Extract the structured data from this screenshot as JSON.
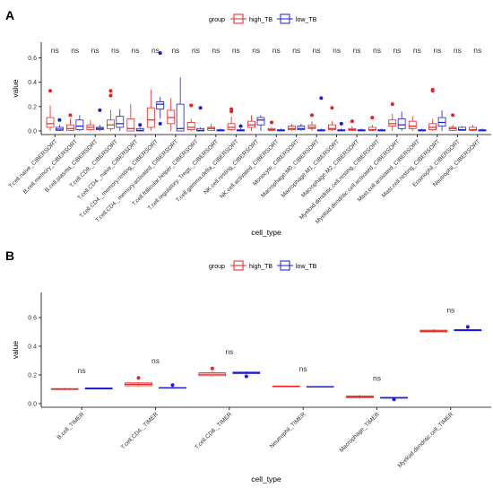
{
  "colors": {
    "high_TB": "#e8201e",
    "low_TB": "#1b1bd8",
    "axis": "#000000",
    "sig": "#333333"
  },
  "chart_data": [
    {
      "panel_label": "A",
      "type": "boxplot",
      "legend": {
        "title": "group",
        "position": "top",
        "entries": [
          "high_TB",
          "low_TB"
        ]
      },
      "xlabel": "cell_type",
      "ylabel": "value",
      "ylim": [
        0,
        0.7
      ],
      "yticks": [
        "0.0",
        "0.2",
        "0.4",
        "0.6"
      ],
      "categories": [
        "T.cell.naive_CIBERSORT",
        "B.cell.memory_CIBERSORT",
        "B.cell.plasma_CIBERSORT",
        "T.cell.CD8._CIBERSORT",
        "T.cell.CD4._naive_CIBERSORT",
        "T.cell.CD4._memory.resting_CIBERSORT",
        "T.cell.CD4._memory.activated_CIBERSORT",
        "T.cell.follicular.helper_CIBERSORT",
        "T.cell.regulatory..Tregs._CIBERSORT",
        "T.cell.gamma.delta_CIBERSORT",
        "NK.cell.resting_CIBERSORT",
        "NK.cell.activated_CIBERSORT",
        "Monocyte_CIBERSORT",
        "Macrophage.M0_CIBERSORT",
        "Macrophage.M1_CIBERSORT",
        "Macrophage.M2_CIBERSORT",
        "Myeloid.dendritic.cell.resting_CIBERSORT",
        "Myeloid.dendritic.cell.activated_CIBERSORT",
        "Mast.cell.activated_CIBERSORT",
        "Mast.cell.resting_CIBERSORT",
        "Eosinophil_CIBERSORT",
        "Neutrophil_CIBERSORT"
      ],
      "significance": [
        "ns",
        "ns",
        "ns",
        "ns",
        "ns",
        "ns",
        "ns",
        "ns",
        "ns",
        "ns",
        "ns",
        "ns",
        "ns",
        "ns",
        "ns",
        "ns",
        "ns",
        "ns",
        "ns",
        "ns",
        "ns",
        "ns"
      ],
      "series": [
        {
          "name": "high_TB",
          "boxes": [
            {
              "min": 0,
              "q1": 0.03,
              "median": 0.06,
              "q3": 0.11,
              "max": 0.21,
              "outliers": [
                0.33
              ]
            },
            {
              "min": 0,
              "q1": 0.005,
              "median": 0.02,
              "q3": 0.05,
              "max": 0.1,
              "outliers": [
                0.13
              ]
            },
            {
              "min": 0,
              "q1": 0.01,
              "median": 0.03,
              "q3": 0.05,
              "max": 0.09,
              "outliers": []
            },
            {
              "min": 0,
              "q1": 0.02,
              "median": 0.05,
              "q3": 0.09,
              "max": 0.17,
              "outliers": [
                0.29,
                0.33
              ]
            },
            {
              "min": 0,
              "q1": 0,
              "median": 0.02,
              "q3": 0.1,
              "max": 0.22,
              "outliers": []
            },
            {
              "min": 0,
              "q1": 0.03,
              "median": 0.09,
              "q3": 0.19,
              "max": 0.34,
              "outliers": []
            },
            {
              "min": 0,
              "q1": 0.06,
              "median": 0.11,
              "q3": 0.17,
              "max": 0.27,
              "outliers": []
            },
            {
              "min": 0,
              "q1": 0.01,
              "median": 0.03,
              "q3": 0.07,
              "max": 0.1,
              "outliers": [
                0.21
              ]
            },
            {
              "min": 0,
              "q1": 0.005,
              "median": 0.02,
              "q3": 0.03,
              "max": 0.06,
              "outliers": []
            },
            {
              "min": 0,
              "q1": 0.01,
              "median": 0.03,
              "q3": 0.06,
              "max": 0.12,
              "outliers": [
                0.16,
                0.18
              ]
            },
            {
              "min": 0,
              "q1": 0.03,
              "median": 0.05,
              "q3": 0.08,
              "max": 0.13,
              "outliers": []
            },
            {
              "min": 0,
              "q1": 0.005,
              "median": 0.01,
              "q3": 0.02,
              "max": 0.03,
              "outliers": [
                0.07
              ]
            },
            {
              "min": 0,
              "q1": 0.01,
              "median": 0.02,
              "q3": 0.04,
              "max": 0.06,
              "outliers": []
            },
            {
              "min": 0,
              "q1": 0.02,
              "median": 0.03,
              "q3": 0.05,
              "max": 0.08,
              "outliers": [
                0.13
              ]
            },
            {
              "min": 0,
              "q1": 0.01,
              "median": 0.02,
              "q3": 0.05,
              "max": 0.08,
              "outliers": [
                0.19
              ]
            },
            {
              "min": 0,
              "q1": 0.005,
              "median": 0.01,
              "q3": 0.02,
              "max": 0.04,
              "outliers": [
                0.08
              ]
            },
            {
              "min": 0,
              "q1": 0.005,
              "median": 0.01,
              "q3": 0.03,
              "max": 0.05,
              "outliers": [
                0.11
              ]
            },
            {
              "min": 0,
              "q1": 0.04,
              "median": 0.06,
              "q3": 0.09,
              "max": 0.14,
              "outliers": [
                0.22
              ]
            },
            {
              "min": 0,
              "q1": 0.02,
              "median": 0.04,
              "q3": 0.08,
              "max": 0.12,
              "outliers": []
            },
            {
              "min": 0,
              "q1": 0.01,
              "median": 0.03,
              "q3": 0.06,
              "max": 0.1,
              "outliers": [
                0.33,
                0.34
              ]
            },
            {
              "min": 0,
              "q1": 0.005,
              "median": 0.02,
              "q3": 0.03,
              "max": 0.05,
              "outliers": [
                0.13
              ]
            },
            {
              "min": 0,
              "q1": 0.005,
              "median": 0.01,
              "q3": 0.03,
              "max": 0.05,
              "outliers": []
            }
          ]
        },
        {
          "name": "low_TB",
          "boxes": [
            {
              "min": 0,
              "q1": 0.005,
              "median": 0.015,
              "q3": 0.03,
              "max": 0.05,
              "outliers": [
                0.09
              ]
            },
            {
              "min": 0,
              "q1": 0.01,
              "median": 0.04,
              "q3": 0.09,
              "max": 0.13,
              "outliers": []
            },
            {
              "min": 0,
              "q1": 0.01,
              "median": 0.02,
              "q3": 0.03,
              "max": 0.05,
              "outliers": [
                0.17
              ]
            },
            {
              "min": 0,
              "q1": 0.03,
              "median": 0.06,
              "q3": 0.12,
              "max": 0.18,
              "outliers": []
            },
            {
              "min": 0,
              "q1": 0,
              "median": 0.005,
              "q3": 0.02,
              "max": 0.03,
              "outliers": [
                0.05
              ]
            },
            {
              "min": 0.1,
              "q1": 0.18,
              "median": 0.22,
              "q3": 0.24,
              "max": 0.28,
              "outliers": [
                0.64,
                0.06
              ]
            },
            {
              "min": 0,
              "q1": 0,
              "median": 0.02,
              "q3": 0.22,
              "max": 0.44,
              "outliers": []
            },
            {
              "min": 0,
              "q1": 0,
              "median": 0.005,
              "q3": 0.02,
              "max": 0.03,
              "outliers": [
                0.19
              ]
            },
            {
              "min": 0,
              "q1": 0,
              "median": 0.005,
              "q3": 0.01,
              "max": 0.02,
              "outliers": []
            },
            {
              "min": 0,
              "q1": 0,
              "median": 0.005,
              "q3": 0.01,
              "max": 0.02,
              "outliers": [
                0.04
              ]
            },
            {
              "min": 0,
              "q1": 0.05,
              "median": 0.09,
              "q3": 0.11,
              "max": 0.13,
              "outliers": []
            },
            {
              "min": 0,
              "q1": 0,
              "median": 0.005,
              "q3": 0.01,
              "max": 0.02,
              "outliers": []
            },
            {
              "min": 0,
              "q1": 0.01,
              "median": 0.02,
              "q3": 0.04,
              "max": 0.06,
              "outliers": []
            },
            {
              "min": 0,
              "q1": 0,
              "median": 0.005,
              "q3": 0.01,
              "max": 0.02,
              "outliers": [
                0.27
              ]
            },
            {
              "min": 0,
              "q1": 0,
              "median": 0.005,
              "q3": 0.01,
              "max": 0.02,
              "outliers": [
                0.06
              ]
            },
            {
              "min": 0,
              "q1": 0,
              "median": 0.005,
              "q3": 0.01,
              "max": 0.02,
              "outliers": []
            },
            {
              "min": 0,
              "q1": 0,
              "median": 0.005,
              "q3": 0.01,
              "max": 0.02,
              "outliers": []
            },
            {
              "min": 0,
              "q1": 0.02,
              "median": 0.05,
              "q3": 0.1,
              "max": 0.16,
              "outliers": []
            },
            {
              "min": 0,
              "q1": 0,
              "median": 0.005,
              "q3": 0.01,
              "max": 0.02,
              "outliers": []
            },
            {
              "min": 0,
              "q1": 0.04,
              "median": 0.07,
              "q3": 0.11,
              "max": 0.17,
              "outliers": []
            },
            {
              "min": 0,
              "q1": 0.005,
              "median": 0.01,
              "q3": 0.03,
              "max": 0.04,
              "outliers": []
            },
            {
              "min": 0,
              "q1": 0,
              "median": 0.005,
              "q3": 0.01,
              "max": 0.02,
              "outliers": []
            }
          ]
        }
      ]
    },
    {
      "panel_label": "B",
      "type": "boxplot",
      "legend": {
        "title": "group",
        "position": "top",
        "entries": [
          "high_TB",
          "low_TB"
        ]
      },
      "xlabel": "cell_type",
      "ylabel": "value",
      "ylim": [
        0,
        0.75
      ],
      "yticks": [
        "0.0",
        "0.2",
        "0.4",
        "0.6"
      ],
      "categories": [
        "B.cell_TIMER",
        "T.cell.CD4._TIMER",
        "T.cell.CD8._TIMER",
        "Neutrophil_TIMER",
        "Macrophage_TIMER",
        "Myeloid.dendritic.cell_TIMER"
      ],
      "significance": [
        "ns",
        "ns",
        "ns",
        "ns",
        "ns",
        "ns"
      ],
      "series": [
        {
          "name": "high_TB",
          "boxes": [
            {
              "min": 0.095,
              "q1": 0.1,
              "median": 0.1,
              "q3": 0.105,
              "max": 0.11,
              "outliers": []
            },
            {
              "min": 0.12,
              "q1": 0.125,
              "median": 0.135,
              "q3": 0.145,
              "max": 0.15,
              "outliers": [
                0.18
              ]
            },
            {
              "min": 0.19,
              "q1": 0.195,
              "median": 0.205,
              "q3": 0.215,
              "max": 0.225,
              "outliers": [
                0.245
              ]
            },
            {
              "min": 0.115,
              "q1": 0.118,
              "median": 0.12,
              "q3": 0.123,
              "max": 0.125,
              "outliers": []
            },
            {
              "min": 0.035,
              "q1": 0.042,
              "median": 0.048,
              "q3": 0.054,
              "max": 0.06,
              "outliers": []
            },
            {
              "min": 0.495,
              "q1": 0.5,
              "median": 0.505,
              "q3": 0.512,
              "max": 0.52,
              "outliers": []
            }
          ]
        },
        {
          "name": "low_TB",
          "boxes": [
            {
              "min": 0.1,
              "q1": 0.102,
              "median": 0.105,
              "q3": 0.11,
              "max": 0.113,
              "outliers": []
            },
            {
              "min": 0.105,
              "q1": 0.108,
              "median": 0.11,
              "q3": 0.112,
              "max": 0.115,
              "outliers": [
                0.13
              ]
            },
            {
              "min": 0.205,
              "q1": 0.21,
              "median": 0.215,
              "q3": 0.22,
              "max": 0.225,
              "outliers": [
                0.19
              ]
            },
            {
              "min": 0.115,
              "q1": 0.116,
              "median": 0.118,
              "q3": 0.12,
              "max": 0.121,
              "outliers": []
            },
            {
              "min": 0.035,
              "q1": 0.038,
              "median": 0.041,
              "q3": 0.044,
              "max": 0.047,
              "outliers": [
                0.03
              ]
            },
            {
              "min": 0.505,
              "q1": 0.508,
              "median": 0.512,
              "q3": 0.516,
              "max": 0.52,
              "outliers": [
                0.535
              ]
            }
          ]
        }
      ]
    }
  ]
}
